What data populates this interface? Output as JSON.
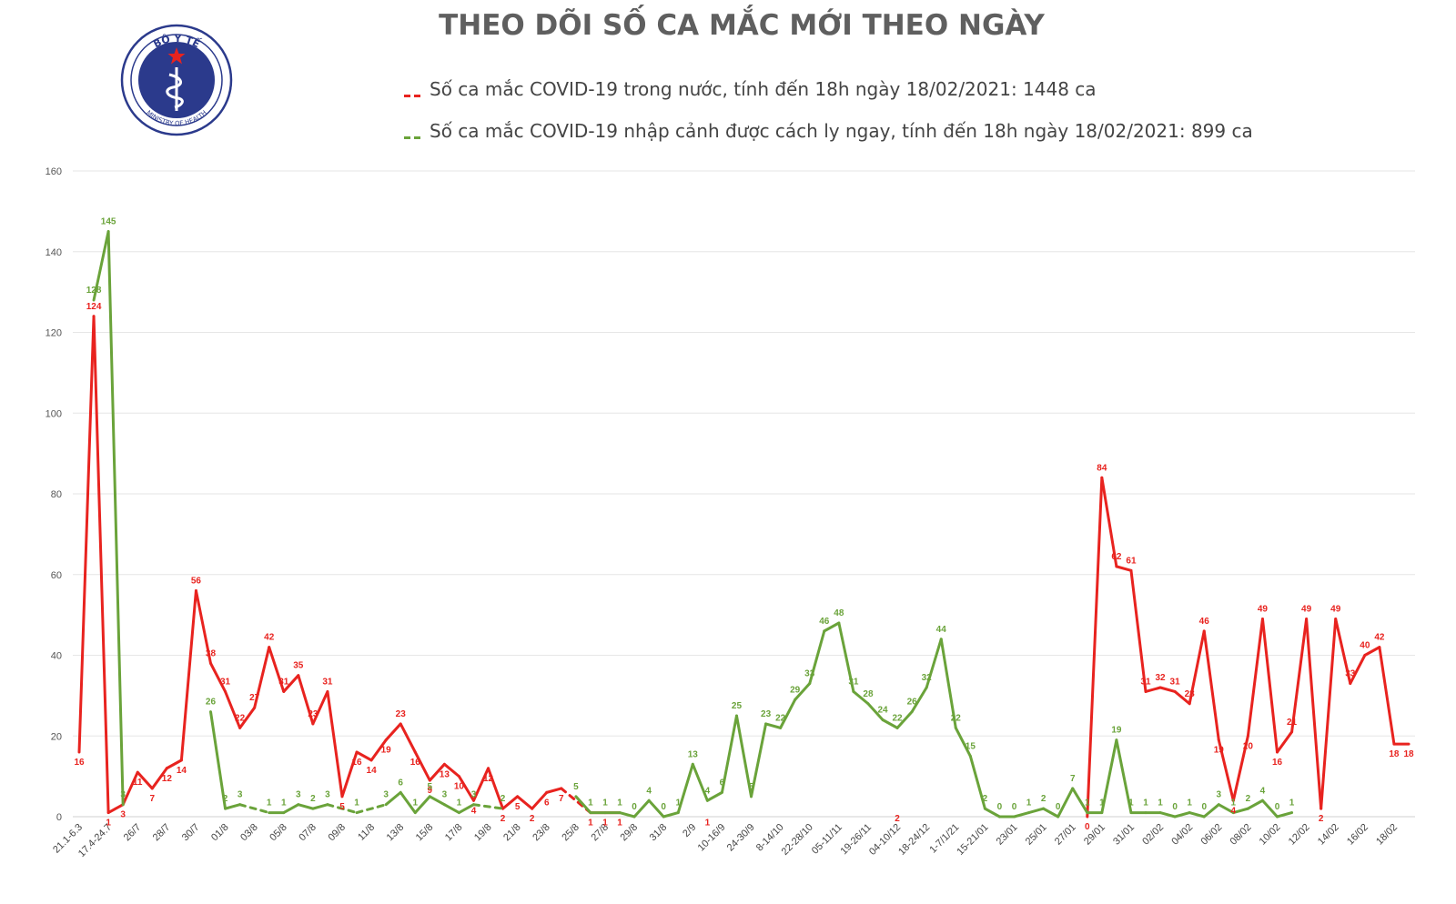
{
  "colors": {
    "domestic": "#e8231f",
    "imported": "#6aa33a",
    "title": "#5f5f5f",
    "grid": "#e6e6e6"
  },
  "logo": {
    "top_text": "BỘ Y TẾ",
    "bottom_text": "MINISTRY OF HEALTH",
    "icon": "caduceus-star-emblem"
  },
  "chart_data": {
    "type": "line",
    "title": "THEO DÕI SỐ CA MẮC MỚI THEO NGÀY",
    "xlabel": "",
    "ylabel": "",
    "ylim": [
      0,
      160
    ],
    "yticks": [
      0,
      20,
      40,
      60,
      80,
      100,
      120,
      140,
      160
    ],
    "grid": true,
    "legend_position": "top",
    "x_tick_labels": [
      "21.1-6.3",
      "17.4-24.7",
      "26/7",
      "28/7",
      "30/7",
      "01/8",
      "03/8",
      "05/8",
      "07/8",
      "09/8",
      "11/8",
      "13/8",
      "15/8",
      "17/8",
      "19/8",
      "21/8",
      "23/8",
      "25/8",
      "27/8",
      "29/8",
      "31/8",
      "2/9",
      "10-16/9",
      "24-30/9",
      "8-14/10",
      "22-28/10",
      "05-11/11",
      "19-26/11",
      "04-10/12",
      "18-24/12",
      "1-7/1/21",
      "15-21/01",
      "23/01",
      "25/01",
      "27/01",
      "29/01",
      "31/01",
      "02/02",
      "04/02",
      "06/02",
      "08/02",
      "10/02",
      "12/02",
      "14/02",
      "16/02",
      "18/02"
    ],
    "series": [
      {
        "name": "Số ca mắc COVID-19 trong nước, tính đến 18h ngày 18/02/2021: 1448 ca",
        "points": [
          [
            0,
            16
          ],
          [
            1,
            124
          ],
          [
            2,
            1
          ],
          [
            3,
            3
          ],
          [
            4,
            11
          ],
          [
            5,
            7
          ],
          [
            6,
            12
          ],
          [
            7,
            14
          ],
          [
            8,
            56
          ],
          [
            9,
            38
          ],
          [
            10,
            31
          ],
          [
            11,
            22
          ],
          [
            12,
            27
          ],
          [
            13,
            42
          ],
          [
            14,
            31
          ],
          [
            15,
            35
          ],
          [
            16,
            23
          ],
          [
            17,
            31
          ],
          [
            18,
            5
          ],
          [
            19,
            16
          ],
          [
            20,
            14
          ],
          [
            21,
            19
          ],
          [
            22,
            23
          ],
          [
            23,
            16
          ],
          [
            24,
            9
          ],
          [
            25,
            13
          ],
          [
            26,
            10
          ],
          [
            27,
            4
          ],
          [
            28,
            12
          ],
          [
            29,
            2
          ],
          [
            30,
            5
          ],
          [
            31,
            2
          ],
          [
            32,
            6
          ],
          [
            33,
            7
          ],
          [
            35,
            1
          ],
          [
            36,
            1
          ],
          [
            37,
            1
          ],
          [
            43,
            1
          ],
          [
            56,
            2
          ],
          [
            69,
            0
          ],
          [
            70,
            84
          ],
          [
            71,
            62
          ],
          [
            72,
            61
          ],
          [
            73,
            31
          ],
          [
            74,
            32
          ],
          [
            75,
            31
          ],
          [
            76,
            28
          ],
          [
            77,
            46
          ],
          [
            78,
            19
          ],
          [
            79,
            4
          ],
          [
            80,
            20
          ],
          [
            81,
            49
          ],
          [
            82,
            16
          ],
          [
            83,
            21
          ],
          [
            84,
            49
          ],
          [
            85,
            2
          ],
          [
            86,
            49
          ],
          [
            87,
            33
          ],
          [
            88,
            40
          ],
          [
            89,
            42
          ],
          [
            90,
            18
          ],
          [
            91,
            18
          ]
        ]
      },
      {
        "name": "Số ca mắc COVID-19 nhập cảnh được cách ly ngay, tính đến 18h ngày 18/02/2021: 899 ca",
        "points": [
          [
            1,
            128
          ],
          [
            2,
            145
          ],
          [
            3,
            3
          ],
          [
            9,
            26
          ],
          [
            10,
            2
          ],
          [
            11,
            3
          ],
          [
            13,
            1
          ],
          [
            14,
            1
          ],
          [
            15,
            3
          ],
          [
            16,
            2
          ],
          [
            17,
            3
          ],
          [
            19,
            1
          ],
          [
            21,
            3
          ],
          [
            22,
            6
          ],
          [
            23,
            1
          ],
          [
            24,
            5
          ],
          [
            25,
            3
          ],
          [
            26,
            1
          ],
          [
            27,
            3
          ],
          [
            29,
            2
          ],
          [
            34,
            5
          ],
          [
            35,
            1
          ],
          [
            36,
            1
          ],
          [
            37,
            1
          ],
          [
            38,
            0
          ],
          [
            39,
            4
          ],
          [
            40,
            0
          ],
          [
            41,
            1
          ],
          [
            42,
            13
          ],
          [
            43,
            4
          ],
          [
            44,
            6
          ],
          [
            45,
            25
          ],
          [
            46,
            5
          ],
          [
            47,
            23
          ],
          [
            48,
            22
          ],
          [
            49,
            29
          ],
          [
            50,
            33
          ],
          [
            51,
            46
          ],
          [
            52,
            48
          ],
          [
            53,
            31
          ],
          [
            54,
            28
          ],
          [
            55,
            24
          ],
          [
            56,
            22
          ],
          [
            57,
            26
          ],
          [
            58,
            32
          ],
          [
            59,
            44
          ],
          [
            60,
            22
          ],
          [
            61,
            15
          ],
          [
            62,
            2
          ],
          [
            63,
            0
          ],
          [
            64,
            0
          ],
          [
            65,
            1
          ],
          [
            66,
            2
          ],
          [
            67,
            0
          ],
          [
            68,
            7
          ],
          [
            69,
            1
          ],
          [
            70,
            1
          ],
          [
            71,
            19
          ],
          [
            72,
            1
          ],
          [
            73,
            1
          ],
          [
            74,
            1
          ],
          [
            75,
            0
          ],
          [
            76,
            1
          ],
          [
            77,
            0
          ],
          [
            78,
            3
          ],
          [
            79,
            1
          ],
          [
            80,
            2
          ],
          [
            81,
            4
          ],
          [
            82,
            0
          ],
          [
            83,
            1
          ]
        ]
      }
    ]
  }
}
